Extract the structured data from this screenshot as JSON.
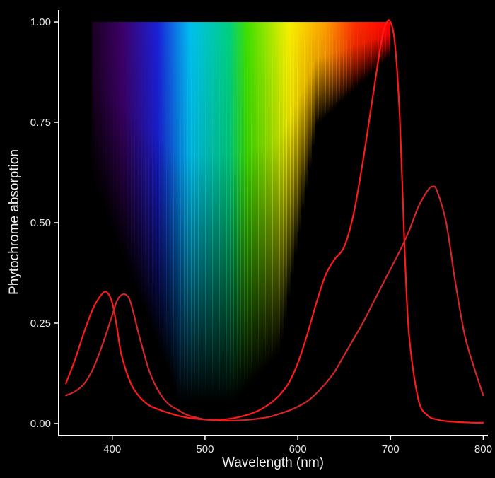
{
  "chart_data": {
    "type": "line",
    "title": "",
    "xlabel": "Wavelength (nm)",
    "ylabel": "Phytochrome absorption",
    "xlim": [
      343,
      805
    ],
    "ylim": [
      -0.03,
      1.03
    ],
    "x_ticks": [
      400,
      500,
      600,
      700,
      800
    ],
    "x_tick_labels": [
      "400",
      "500",
      "600",
      "700",
      "800"
    ],
    "y_ticks": [
      0,
      0.25,
      0.5,
      0.75,
      1.0
    ],
    "y_tick_labels": [
      "0.00",
      "0.25",
      "0.50",
      "0.75",
      "1.00"
    ],
    "grid": false,
    "background": "#000000",
    "axis_color": "#ffffff",
    "spectrum_band": {
      "x_start": 378,
      "x_end": 700,
      "y_top": 1.0
    },
    "series": [
      {
        "color": "#ff1a1a",
        "x": [
          350,
          360,
          370,
          380,
          390,
          395,
          400,
          405,
          410,
          420,
          430,
          440,
          450,
          460,
          470,
          480,
          490,
          500,
          510,
          520,
          530,
          540,
          550,
          560,
          570,
          580,
          590,
          600,
          610,
          620,
          630,
          640,
          650,
          660,
          670,
          680,
          690,
          695,
          700,
          705,
          710,
          715,
          720,
          730,
          740,
          750,
          760,
          770,
          780,
          790,
          800
        ],
        "y": [
          0.1,
          0.16,
          0.23,
          0.29,
          0.325,
          0.325,
          0.3,
          0.24,
          0.17,
          0.1,
          0.065,
          0.045,
          0.035,
          0.027,
          0.02,
          0.015,
          0.012,
          0.01,
          0.01,
          0.01,
          0.013,
          0.018,
          0.025,
          0.035,
          0.05,
          0.07,
          0.1,
          0.15,
          0.22,
          0.3,
          0.37,
          0.41,
          0.44,
          0.52,
          0.65,
          0.8,
          0.95,
          0.995,
          1.0,
          0.94,
          0.76,
          0.45,
          0.22,
          0.06,
          0.02,
          0.01,
          0.006,
          0.004,
          0.003,
          0.002,
          0.002
        ]
      },
      {
        "color": "#d42626",
        "x": [
          350,
          360,
          370,
          380,
          390,
          400,
          405,
          410,
          415,
          420,
          430,
          440,
          450,
          460,
          470,
          480,
          490,
          500,
          510,
          520,
          530,
          540,
          550,
          560,
          570,
          580,
          590,
          600,
          610,
          620,
          630,
          640,
          650,
          660,
          670,
          680,
          690,
          700,
          710,
          720,
          730,
          740,
          745,
          750,
          760,
          770,
          780,
          790,
          800
        ],
        "y": [
          0.07,
          0.08,
          0.1,
          0.14,
          0.2,
          0.27,
          0.305,
          0.32,
          0.32,
          0.3,
          0.21,
          0.13,
          0.08,
          0.05,
          0.035,
          0.022,
          0.015,
          0.01,
          0.008,
          0.007,
          0.007,
          0.008,
          0.01,
          0.013,
          0.017,
          0.024,
          0.032,
          0.042,
          0.055,
          0.075,
          0.1,
          0.13,
          0.17,
          0.21,
          0.25,
          0.295,
          0.34,
          0.385,
          0.43,
          0.48,
          0.54,
          0.58,
          0.59,
          0.58,
          0.5,
          0.35,
          0.22,
          0.14,
          0.07
        ]
      }
    ]
  }
}
